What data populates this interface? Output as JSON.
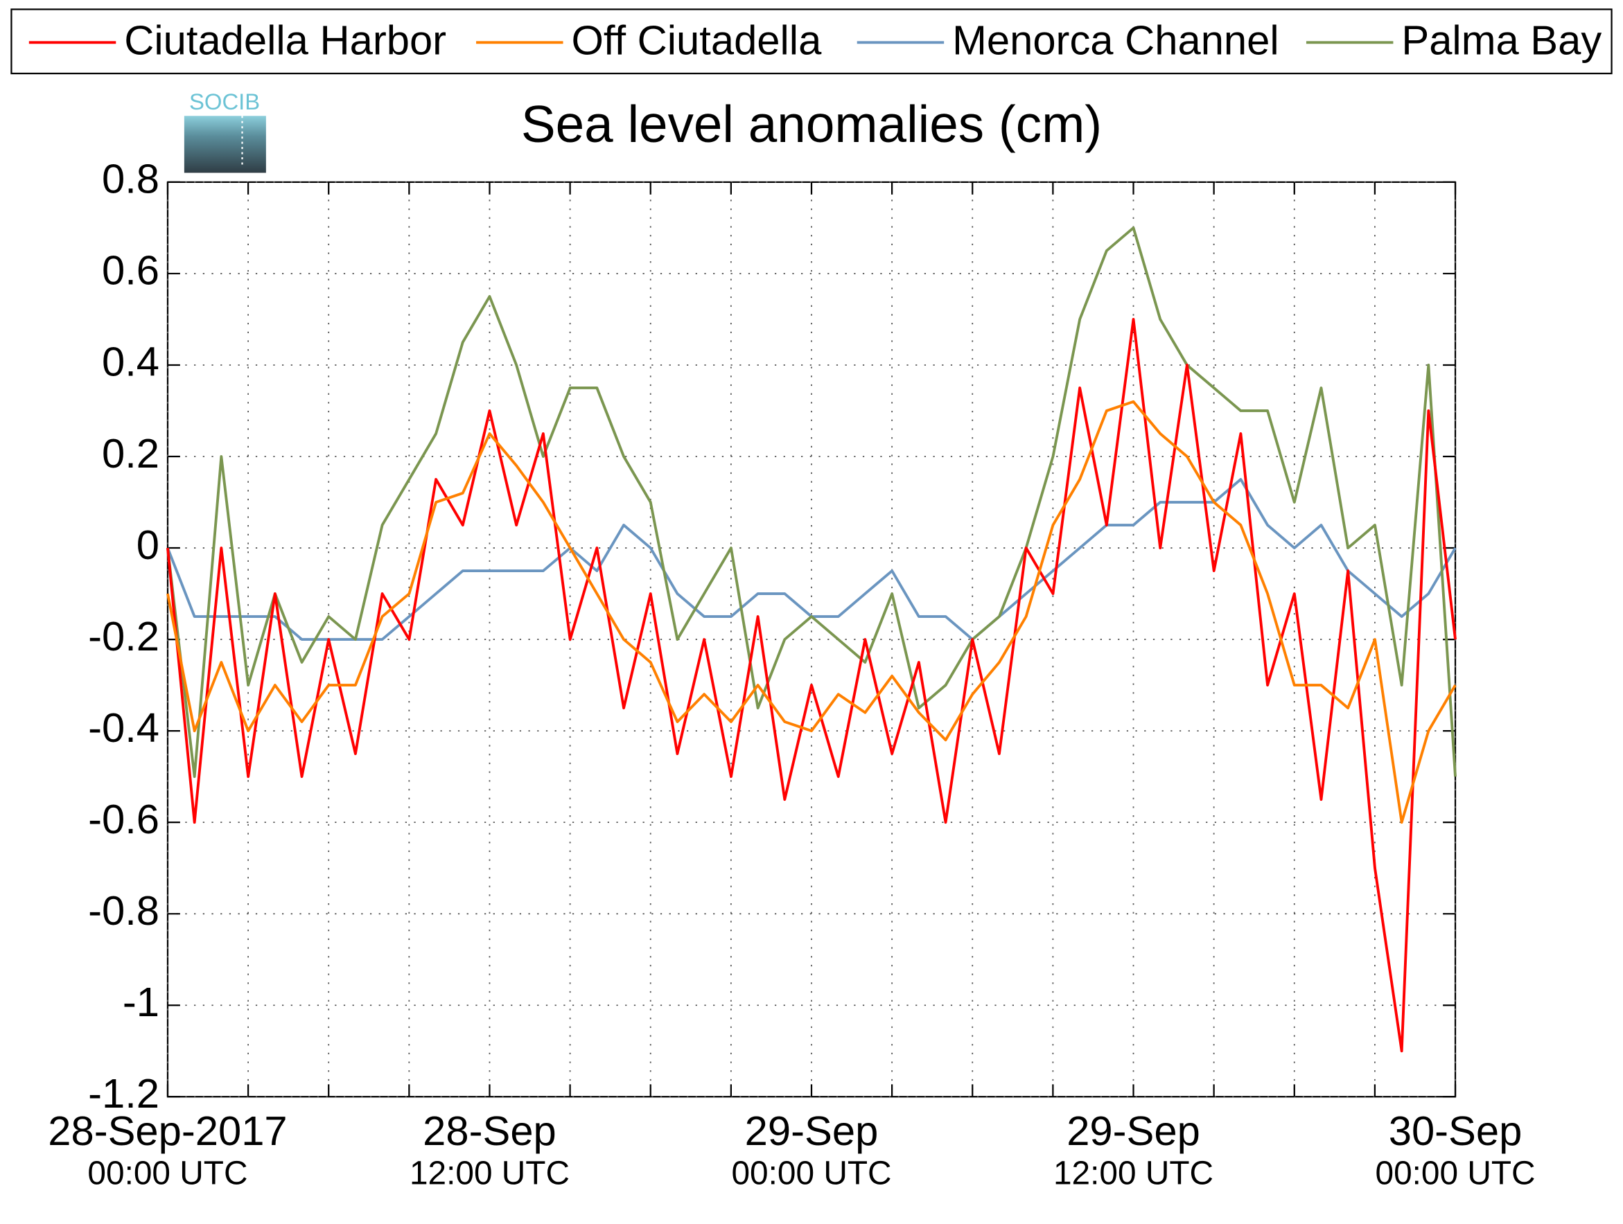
{
  "chart_data": {
    "type": "line",
    "title": "Sea level anomalies (cm)",
    "logo_text": "SOCIB",
    "legend": "top",
    "grid": true,
    "x": [
      0,
      1,
      2,
      3,
      4,
      5,
      6,
      7,
      8,
      9,
      10,
      11,
      12,
      13,
      14,
      15,
      16,
      17,
      18,
      19,
      20,
      21,
      22,
      23,
      24,
      25,
      26,
      27,
      28,
      29,
      30,
      31,
      32,
      33,
      34,
      35,
      36,
      37,
      38,
      39,
      40,
      41,
      42,
      43,
      44,
      45,
      46,
      47,
      48
    ],
    "xlim": [
      0,
      48
    ],
    "xticks": [
      {
        "value": 0,
        "label": "28-Sep-2017",
        "time": "00:00 UTC"
      },
      {
        "value": 12,
        "label": "28-Sep",
        "time": "12:00 UTC"
      },
      {
        "value": 24,
        "label": "29-Sep",
        "time": "00:00 UTC"
      },
      {
        "value": 36,
        "label": "29-Sep",
        "time": "12:00 UTC"
      },
      {
        "value": 48,
        "label": "30-Sep",
        "time": "00:00 UTC"
      }
    ],
    "xgrid": [
      0,
      3,
      6,
      9,
      12,
      15,
      18,
      21,
      24,
      27,
      30,
      33,
      36,
      39,
      42,
      45,
      48
    ],
    "ylim": [
      -1.2,
      0.8
    ],
    "yticks": [
      -1.2,
      -1,
      -0.8,
      -0.6,
      -0.4,
      -0.2,
      0,
      0.2,
      0.4,
      0.6,
      0.8
    ],
    "series": [
      {
        "name": "Ciutadella Harbor",
        "color": "#ff0000",
        "values": [
          0.0,
          -0.6,
          0.0,
          -0.5,
          -0.1,
          -0.5,
          -0.2,
          -0.45,
          -0.1,
          -0.2,
          0.15,
          0.05,
          0.3,
          0.05,
          0.25,
          -0.2,
          0.0,
          -0.35,
          -0.1,
          -0.45,
          -0.2,
          -0.5,
          -0.15,
          -0.55,
          -0.3,
          -0.5,
          -0.2,
          -0.45,
          -0.25,
          -0.6,
          -0.2,
          -0.45,
          0.0,
          -0.1,
          0.35,
          0.05,
          0.5,
          0.0,
          0.4,
          -0.05,
          0.25,
          -0.3,
          -0.1,
          -0.55,
          -0.05,
          -0.7,
          -1.1,
          0.3,
          -0.2
        ]
      },
      {
        "name": "Off Ciutadella",
        "color": "#ff8000",
        "values": [
          -0.1,
          -0.4,
          -0.25,
          -0.4,
          -0.3,
          -0.38,
          -0.3,
          -0.3,
          -0.15,
          -0.1,
          0.1,
          0.12,
          0.25,
          0.18,
          0.1,
          0.0,
          -0.1,
          -0.2,
          -0.25,
          -0.38,
          -0.32,
          -0.38,
          -0.3,
          -0.38,
          -0.4,
          -0.32,
          -0.36,
          -0.28,
          -0.36,
          -0.42,
          -0.32,
          -0.25,
          -0.15,
          0.05,
          0.15,
          0.3,
          0.32,
          0.25,
          0.2,
          0.1,
          0.05,
          -0.1,
          -0.3,
          -0.3,
          -0.35,
          -0.2,
          -0.6,
          -0.4,
          -0.3
        ]
      },
      {
        "name": "Menorca Channel",
        "color": "#6a95c0",
        "values": [
          0.0,
          -0.15,
          -0.15,
          -0.15,
          -0.15,
          -0.2,
          -0.2,
          -0.2,
          -0.2,
          -0.15,
          -0.1,
          -0.05,
          -0.05,
          -0.05,
          -0.05,
          0.0,
          -0.05,
          0.05,
          0.0,
          -0.1,
          -0.15,
          -0.15,
          -0.1,
          -0.1,
          -0.15,
          -0.15,
          -0.1,
          -0.05,
          -0.15,
          -0.15,
          -0.2,
          -0.15,
          -0.1,
          -0.05,
          0.0,
          0.05,
          0.05,
          0.1,
          0.1,
          0.1,
          0.15,
          0.05,
          0.0,
          0.05,
          -0.05,
          -0.1,
          -0.15,
          -0.1,
          0.0
        ]
      },
      {
        "name": "Palma Bay",
        "color": "#7b9650",
        "values": [
          0.0,
          -0.5,
          0.2,
          -0.3,
          -0.1,
          -0.25,
          -0.15,
          -0.2,
          0.05,
          0.15,
          0.25,
          0.45,
          0.55,
          0.4,
          0.2,
          0.35,
          0.35,
          0.2,
          0.1,
          -0.2,
          -0.1,
          0.0,
          -0.35,
          -0.2,
          -0.15,
          -0.2,
          -0.25,
          -0.1,
          -0.35,
          -0.3,
          -0.2,
          -0.15,
          0.0,
          0.2,
          0.5,
          0.65,
          0.7,
          0.5,
          0.4,
          0.35,
          0.3,
          0.3,
          0.1,
          0.35,
          0.0,
          0.05,
          -0.3,
          0.4,
          -0.5
        ]
      }
    ]
  }
}
